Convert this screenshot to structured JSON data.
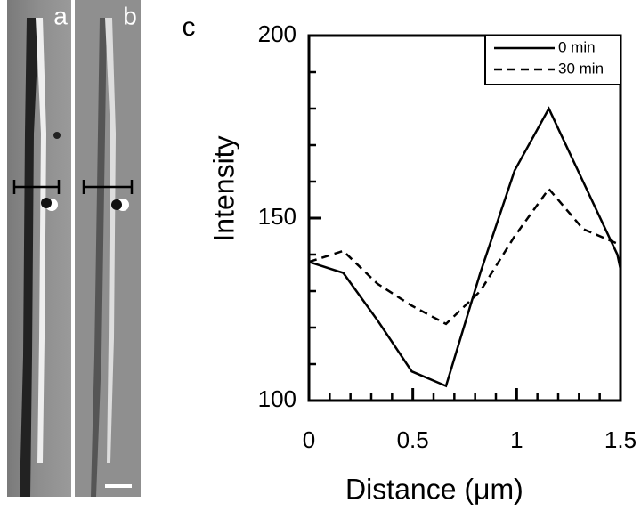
{
  "panel_labels": [
    "a",
    "b",
    "c"
  ],
  "chart_data": {
    "type": "line",
    "x_label": "Distance (μm)",
    "y_label": "Intensity",
    "x": [
      0,
      0.165,
      0.33,
      0.495,
      0.66,
      0.825,
      0.99,
      1.155,
      1.32,
      1.485,
      1.5
    ],
    "series": [
      {
        "name": "0 min",
        "color": "#000000",
        "dash": "solid",
        "values": [
          138,
          135,
          122,
          108,
          104,
          135,
          163,
          180,
          160,
          140,
          136
        ]
      },
      {
        "name": "30 min",
        "color": "#000000",
        "dash": "dashed",
        "values": [
          138,
          141,
          132,
          126,
          121,
          130,
          145,
          158,
          147,
          143,
          142
        ]
      }
    ],
    "xlim": [
      0,
      1.5
    ],
    "ylim": [
      100,
      200
    ],
    "xticks": [
      0,
      0.5,
      1,
      1.5
    ],
    "yticks": [
      100,
      150,
      200
    ],
    "legend": "upper right",
    "grid": false
  }
}
